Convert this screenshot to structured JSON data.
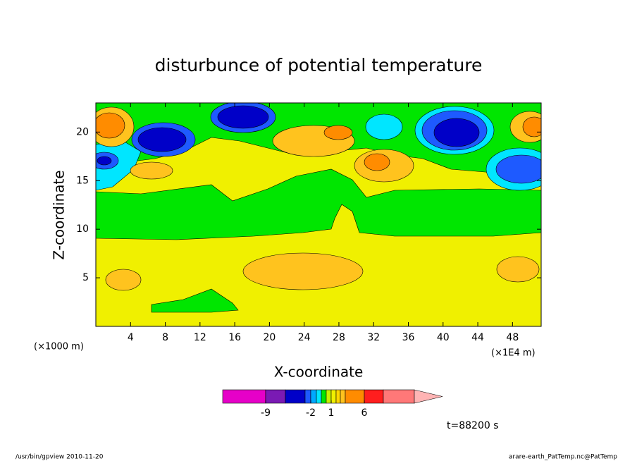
{
  "chart_data": {
    "type": "contour",
    "title": "disturbunce of potential temperature",
    "x_label": "X-coordinate",
    "y_label": "Z-coordinate",
    "x_unit": "(×1E4 m)",
    "y_unit": "(×1000 m)",
    "xlim": [
      0,
      51.3
    ],
    "xticks": [
      4,
      8,
      12,
      16,
      20,
      24,
      28,
      32,
      36,
      40,
      44,
      48
    ],
    "ylim": [
      0,
      23
    ],
    "yticks": [
      5,
      10,
      15,
      20
    ],
    "colorbar": {
      "levels": [
        -12,
        -9,
        -6,
        -3,
        -2,
        -1,
        -0.5,
        0.5,
        1,
        2,
        3,
        4,
        6,
        9,
        12
      ],
      "colors": [
        "#e600c8",
        "#7a1ab4",
        "#0000c8",
        "#1e5aff",
        "#00aaff",
        "#00e6ff",
        "#00e600",
        "#c8f000",
        "#f0f000",
        "#ffd700",
        "#ffc31e",
        "#ff8c00",
        "#ff1e1e",
        "#ff7878"
      ],
      "extend_color": "#ffb4b4",
      "ticks": [
        -9,
        -2,
        1,
        6
      ]
    },
    "annotation": "t=88200 s",
    "footer_left": "/usr/bin/gpview   2010-11-20",
    "footer_right": "arare-earth_PatTemp.nc@PatTemp"
  }
}
